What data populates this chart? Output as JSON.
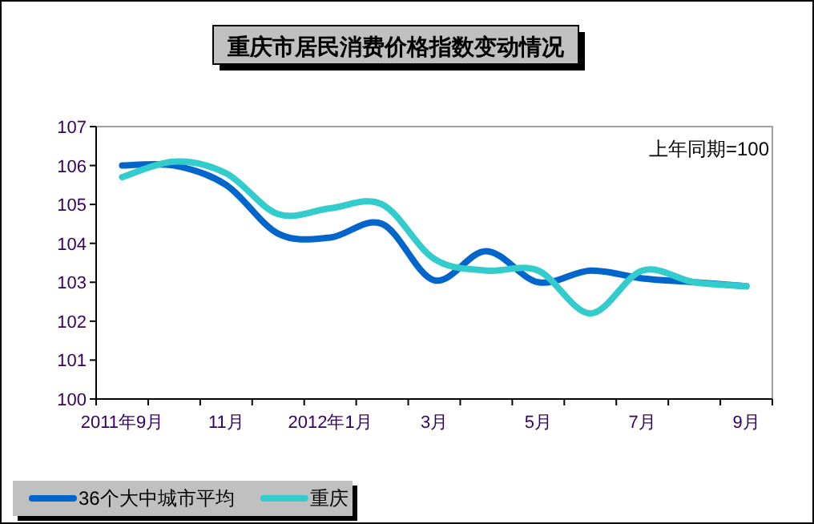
{
  "chart_data": {
    "type": "line",
    "title": "重庆市居民消费价格指数变动情况",
    "annotations": [
      "上年同期=100"
    ],
    "categories": [
      "2011年9月",
      null,
      "11月",
      null,
      "2012年1月",
      null,
      "3月",
      null,
      "5月",
      null,
      "7月",
      null,
      "9月"
    ],
    "series": [
      {
        "name": "36个大中城市平均",
        "color": "#0066cc",
        "values": [
          106.0,
          106.0,
          105.5,
          104.25,
          104.15,
          104.5,
          103.05,
          103.8,
          103.0,
          103.3,
          103.1,
          103.0,
          102.9
        ]
      },
      {
        "name": "重庆",
        "color": "#33cccc",
        "values": [
          105.7,
          106.1,
          105.8,
          104.75,
          104.9,
          105.0,
          103.6,
          103.3,
          103.3,
          102.2,
          103.3,
          103.0,
          102.9
        ]
      }
    ],
    "ylim": [
      100,
      107
    ],
    "yticks": [
      100,
      101,
      102,
      103,
      104,
      105,
      106,
      107
    ],
    "grid": false,
    "legend": "bottom left"
  }
}
